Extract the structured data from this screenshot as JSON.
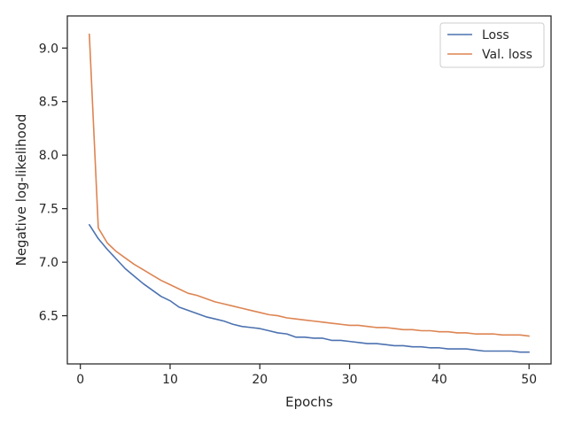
{
  "chart_data": {
    "type": "line",
    "title": "",
    "xlabel": "Epochs",
    "ylabel": "Negative log-likelihood",
    "xlim": [
      -1.45,
      52.45
    ],
    "ylim": [
      6.05,
      9.3
    ],
    "xticks": [
      0,
      10,
      20,
      30,
      40,
      50
    ],
    "yticks": [
      6.5,
      7.0,
      7.5,
      8.0,
      8.5,
      9.0
    ],
    "xtick_labels": [
      "0",
      "10",
      "20",
      "30",
      "40",
      "50"
    ],
    "ytick_labels": [
      "6.5",
      "7.0",
      "7.5",
      "8.0",
      "8.5",
      "9.0"
    ],
    "grid": false,
    "legend_position": "top-right",
    "x": [
      1,
      2,
      3,
      4,
      5,
      6,
      7,
      8,
      9,
      10,
      11,
      12,
      13,
      14,
      15,
      16,
      17,
      18,
      19,
      20,
      21,
      22,
      23,
      24,
      25,
      26,
      27,
      28,
      29,
      30,
      31,
      32,
      33,
      34,
      35,
      36,
      37,
      38,
      39,
      40,
      41,
      42,
      43,
      44,
      45,
      46,
      47,
      48,
      49,
      50
    ],
    "series": [
      {
        "name": "Loss",
        "color": "#4c72b0",
        "values": [
          7.35,
          7.22,
          7.12,
          7.03,
          6.94,
          6.87,
          6.8,
          6.74,
          6.68,
          6.64,
          6.58,
          6.55,
          6.52,
          6.49,
          6.47,
          6.45,
          6.42,
          6.4,
          6.39,
          6.38,
          6.36,
          6.34,
          6.33,
          6.3,
          6.3,
          6.29,
          6.29,
          6.27,
          6.27,
          6.26,
          6.25,
          6.24,
          6.24,
          6.23,
          6.22,
          6.22,
          6.21,
          6.21,
          6.2,
          6.2,
          6.19,
          6.19,
          6.19,
          6.18,
          6.17,
          6.17,
          6.17,
          6.17,
          6.16,
          6.16
        ]
      },
      {
        "name": "Val. loss",
        "color": "#dd8452",
        "values": [
          9.13,
          7.32,
          7.18,
          7.1,
          7.04,
          6.98,
          6.93,
          6.88,
          6.83,
          6.79,
          6.75,
          6.71,
          6.69,
          6.66,
          6.63,
          6.61,
          6.59,
          6.57,
          6.55,
          6.53,
          6.51,
          6.5,
          6.48,
          6.47,
          6.46,
          6.45,
          6.44,
          6.43,
          6.42,
          6.41,
          6.41,
          6.4,
          6.39,
          6.39,
          6.38,
          6.37,
          6.37,
          6.36,
          6.36,
          6.35,
          6.35,
          6.34,
          6.34,
          6.33,
          6.33,
          6.33,
          6.32,
          6.32,
          6.32,
          6.31
        ]
      }
    ]
  }
}
